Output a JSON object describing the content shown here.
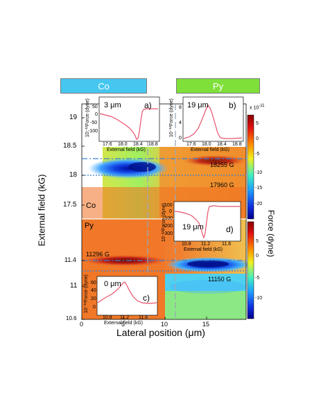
{
  "colors": {
    "co_tag": "#45c7f0",
    "py_tag": "#7fe03a",
    "trace": "#e8506a",
    "guide_blue": "#3a7fd0",
    "guide_gray": "#9aa8b8"
  },
  "tags": {
    "co": "Co",
    "py": "Py"
  },
  "main": {
    "ylabel": "External field (kG)",
    "xlabel_prefix": "Lateral position (",
    "xlabel_unit": "μm",
    "xlabel_suffix": ")",
    "yticks_top": [
      "19",
      "18.5",
      "18",
      "17.5"
    ],
    "yticks_bottom": [
      "11.4",
      "11",
      "10.6"
    ],
    "xticks": [
      "0",
      "5",
      "10",
      "15"
    ],
    "region_labels": {
      "co": "Co",
      "py": "Py"
    },
    "field_annotations": [
      "18255 G",
      "17960 G",
      "11296 G",
      "11150 G"
    ]
  },
  "colorbar": {
    "label": "Force (dyne)",
    "exponent": "x 10",
    "exponent_power": "-11",
    "top_ticks": [
      "5",
      "0",
      "-5",
      "-10",
      "-15",
      "-20"
    ],
    "bottom_ticks": [
      "5",
      "0",
      "-5",
      "-10"
    ]
  },
  "insets": [
    {
      "panel": "a)",
      "thickness": "3 μm",
      "ylabel": "10⁻¹²Force (dyne)",
      "xlabel": "External field (kG)",
      "xticks": [
        "17.6",
        "18.0",
        "18.4",
        "18.8"
      ],
      "yticks": [
        "50",
        "0",
        "-50",
        "-100"
      ]
    },
    {
      "panel": "b)",
      "thickness": "19 μm",
      "ylabel": "10⁻¹²Force (dyne)",
      "xlabel": "External field (kG)",
      "xticks": [
        "17.6",
        "18.0",
        "18.4",
        "18.8"
      ],
      "yticks": [
        "8",
        "4",
        "0"
      ]
    },
    {
      "panel": "c)",
      "thickness": "0 μm",
      "ylabel": "10⁻¹²Force (dyne)",
      "xlabel": "External field (kG)",
      "xticks": [
        "10.8",
        "11.2",
        "11.6"
      ],
      "yticks": [
        "60",
        "40",
        "20",
        "0"
      ]
    },
    {
      "panel": "d)",
      "thickness": "19 μm",
      "ylabel": "10⁻¹²Force (dyne)",
      "xlabel": "External field (kG)",
      "xticks": [
        "10.8",
        "11.2",
        "11.6"
      ],
      "yticks": [
        "100",
        "0",
        "-100",
        "-200",
        "-300"
      ]
    }
  ]
}
